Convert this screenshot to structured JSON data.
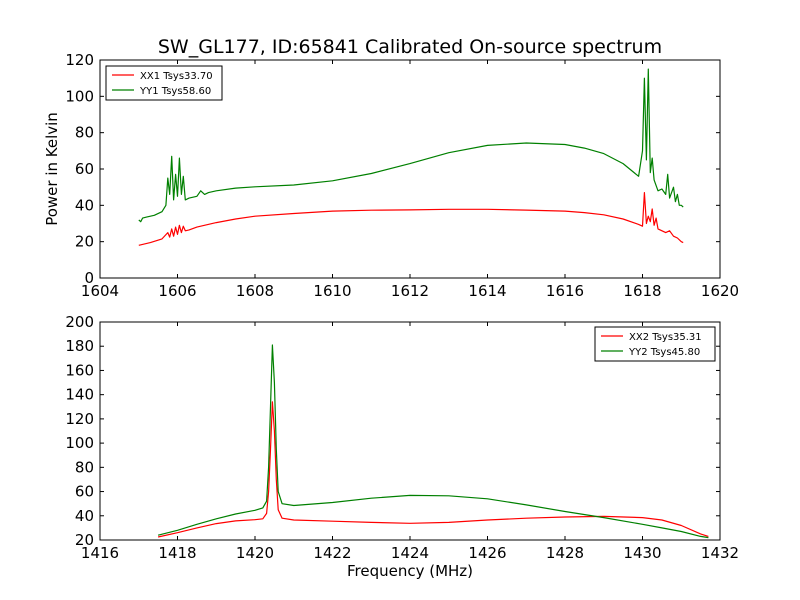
{
  "chart_data": [
    {
      "type": "line",
      "title": "SW_GL177, ID:65841 Calibrated On-source spectrum",
      "xlabel": "",
      "ylabel": "Power in Kelvin",
      "xlim": [
        1604,
        1620
      ],
      "ylim": [
        0,
        120
      ],
      "xticks": [
        1604,
        1606,
        1608,
        1610,
        1612,
        1614,
        1616,
        1618,
        1620
      ],
      "yticks": [
        0,
        20,
        40,
        60,
        80,
        100,
        120
      ],
      "legend_position": "top-left",
      "grid": false,
      "series": [
        {
          "name": "XX1 Tsys33.70",
          "color": "#ff0000",
          "points": [
            [
              1605.0,
              18.0
            ],
            [
              1605.3,
              19.5
            ],
            [
              1605.6,
              21.5
            ],
            [
              1605.75,
              25
            ],
            [
              1605.8,
              22.5
            ],
            [
              1605.85,
              27
            ],
            [
              1605.9,
              23
            ],
            [
              1605.95,
              28
            ],
            [
              1606.0,
              24
            ],
            [
              1606.05,
              29
            ],
            [
              1606.1,
              25
            ],
            [
              1606.15,
              28.5
            ],
            [
              1606.2,
              26
            ],
            [
              1606.3,
              26.5
            ],
            [
              1606.5,
              28
            ],
            [
              1607.0,
              30.5
            ],
            [
              1607.5,
              32.5
            ],
            [
              1608.0,
              34
            ],
            [
              1609.0,
              35.5
            ],
            [
              1610.0,
              36.8
            ],
            [
              1611.0,
              37.3
            ],
            [
              1612.0,
              37.5
            ],
            [
              1613.0,
              37.8
            ],
            [
              1614.0,
              37.8
            ],
            [
              1615.0,
              37.4
            ],
            [
              1616.0,
              36.8
            ],
            [
              1616.5,
              36.0
            ],
            [
              1617.0,
              34.8
            ],
            [
              1617.5,
              32.5
            ],
            [
              1617.9,
              29.5
            ],
            [
              1618.0,
              28.5
            ],
            [
              1618.05,
              47
            ],
            [
              1618.1,
              30
            ],
            [
              1618.15,
              34
            ],
            [
              1618.2,
              31
            ],
            [
              1618.25,
              38
            ],
            [
              1618.3,
              29
            ],
            [
              1618.35,
              33
            ],
            [
              1618.4,
              27
            ],
            [
              1618.6,
              25
            ],
            [
              1618.7,
              26
            ],
            [
              1618.8,
              23
            ],
            [
              1618.9,
              22
            ],
            [
              1619.0,
              20
            ],
            [
              1619.05,
              19.5
            ]
          ]
        },
        {
          "name": "YY1 Tsys58.60",
          "color": "#008000",
          "points": [
            [
              1605.0,
              32
            ],
            [
              1605.05,
              31
            ],
            [
              1605.1,
              33
            ],
            [
              1605.2,
              33.5
            ],
            [
              1605.4,
              34.5
            ],
            [
              1605.6,
              36.5
            ],
            [
              1605.7,
              40
            ],
            [
              1605.75,
              55
            ],
            [
              1605.8,
              46
            ],
            [
              1605.85,
              67
            ],
            [
              1605.9,
              43
            ],
            [
              1605.95,
              57
            ],
            [
              1606.0,
              45
            ],
            [
              1606.05,
              66
            ],
            [
              1606.1,
              46
            ],
            [
              1606.15,
              56
            ],
            [
              1606.2,
              43
            ],
            [
              1606.3,
              44
            ],
            [
              1606.5,
              45
            ],
            [
              1606.6,
              48
            ],
            [
              1606.7,
              46
            ],
            [
              1606.8,
              47
            ],
            [
              1607.0,
              48
            ],
            [
              1607.5,
              49.5
            ],
            [
              1608.0,
              50.2
            ],
            [
              1609.0,
              51.2
            ],
            [
              1610.0,
              53.5
            ],
            [
              1611.0,
              57.5
            ],
            [
              1612.0,
              63
            ],
            [
              1613.0,
              69
            ],
            [
              1614.0,
              73
            ],
            [
              1615.0,
              74.3
            ],
            [
              1616.0,
              73.5
            ],
            [
              1616.5,
              71.5
            ],
            [
              1617.0,
              68.5
            ],
            [
              1617.5,
              63
            ],
            [
              1617.9,
              56
            ],
            [
              1618.0,
              70
            ],
            [
              1618.05,
              110
            ],
            [
              1618.1,
              65
            ],
            [
              1618.15,
              115
            ],
            [
              1618.2,
              58
            ],
            [
              1618.25,
              66
            ],
            [
              1618.3,
              54
            ],
            [
              1618.4,
              48
            ],
            [
              1618.5,
              49
            ],
            [
              1618.6,
              46
            ],
            [
              1618.65,
              57
            ],
            [
              1618.7,
              44
            ],
            [
              1618.8,
              50
            ],
            [
              1618.85,
              42
            ],
            [
              1618.9,
              46
            ],
            [
              1618.95,
              40
            ],
            [
              1619.0,
              40
            ],
            [
              1619.05,
              39
            ]
          ]
        }
      ]
    },
    {
      "type": "line",
      "title": "",
      "xlabel": "Frequency (MHz)",
      "ylabel": "",
      "xlim": [
        1416,
        1432
      ],
      "ylim": [
        20,
        200
      ],
      "xticks": [
        1416,
        1418,
        1420,
        1422,
        1424,
        1426,
        1428,
        1430,
        1432
      ],
      "yticks": [
        20,
        40,
        60,
        80,
        100,
        120,
        140,
        160,
        180,
        200
      ],
      "legend_position": "top-right",
      "grid": false,
      "series": [
        {
          "name": "XX2 Tsys35.31",
          "color": "#ff0000",
          "points": [
            [
              1417.5,
              22.5
            ],
            [
              1418.0,
              26
            ],
            [
              1418.5,
              30
            ],
            [
              1419.0,
              33.5
            ],
            [
              1419.5,
              35.8
            ],
            [
              1420.0,
              36.8
            ],
            [
              1420.2,
              37.5
            ],
            [
              1420.3,
              42
            ],
            [
              1420.35,
              60
            ],
            [
              1420.4,
              95
            ],
            [
              1420.45,
              134
            ],
            [
              1420.5,
              110
            ],
            [
              1420.55,
              70
            ],
            [
              1420.6,
              45
            ],
            [
              1420.7,
              38
            ],
            [
              1421.0,
              36.5
            ],
            [
              1422.0,
              35.5
            ],
            [
              1423.0,
              34.5
            ],
            [
              1424.0,
              33.8
            ],
            [
              1425.0,
              34.5
            ],
            [
              1426.0,
              36.5
            ],
            [
              1427.0,
              38
            ],
            [
              1428.0,
              39
            ],
            [
              1429.0,
              39.5
            ],
            [
              1430.0,
              38.5
            ],
            [
              1430.5,
              36.5
            ],
            [
              1431.0,
              32
            ],
            [
              1431.5,
              25
            ],
            [
              1431.7,
              23
            ]
          ]
        },
        {
          "name": "YY2 Tsys45.80",
          "color": "#008000",
          "points": [
            [
              1417.5,
              24
            ],
            [
              1418.0,
              28
            ],
            [
              1418.5,
              33
            ],
            [
              1419.0,
              37.5
            ],
            [
              1419.5,
              41.5
            ],
            [
              1420.0,
              44.5
            ],
            [
              1420.2,
              46.5
            ],
            [
              1420.3,
              52
            ],
            [
              1420.35,
              80
            ],
            [
              1420.4,
              130
            ],
            [
              1420.45,
              181
            ],
            [
              1420.5,
              150
            ],
            [
              1420.55,
              95
            ],
            [
              1420.6,
              60
            ],
            [
              1420.7,
              50
            ],
            [
              1421.0,
              48.5
            ],
            [
              1422.0,
              51
            ],
            [
              1423.0,
              54.5
            ],
            [
              1424.0,
              56.8
            ],
            [
              1425.0,
              56.5
            ],
            [
              1426.0,
              54
            ],
            [
              1427.0,
              49
            ],
            [
              1428.0,
              43.5
            ],
            [
              1429.0,
              38.5
            ],
            [
              1430.0,
              33
            ],
            [
              1430.5,
              30
            ],
            [
              1431.0,
              27
            ],
            [
              1431.5,
              23
            ],
            [
              1431.7,
              22
            ]
          ]
        }
      ]
    }
  ]
}
